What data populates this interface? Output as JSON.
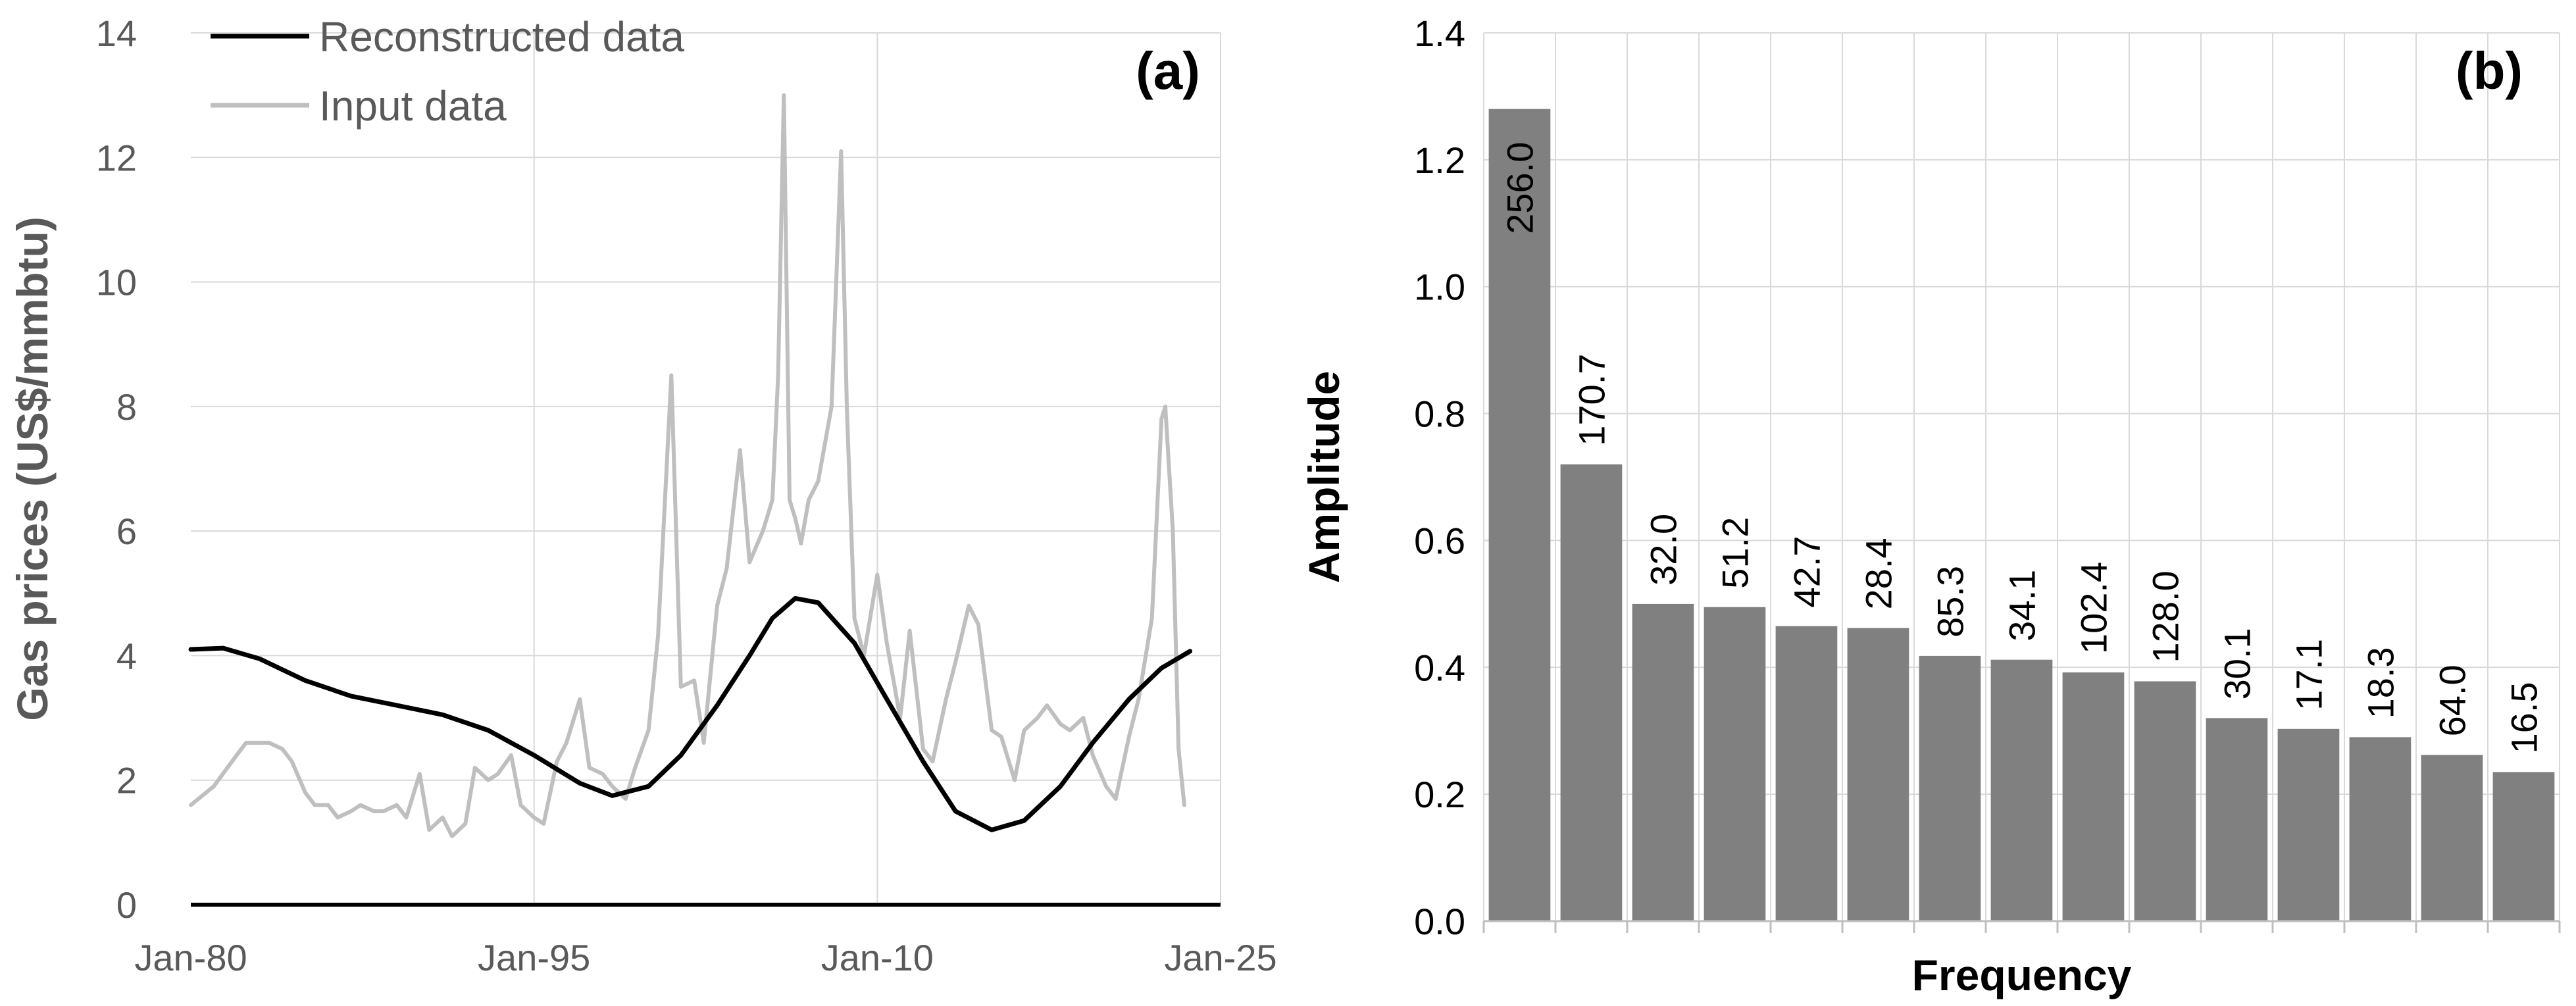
{
  "colors": {
    "reconstructed": "#000000",
    "input": "#bfbfbf",
    "bar": "#808080",
    "grid": "#d9d9d9",
    "tick_text_a": "#595959",
    "tick_text_b": "#000000"
  },
  "chart_data": [
    {
      "type": "line",
      "panel_label": "(a)",
      "ylabel": "Gas prices (US$/mmbtu)",
      "xlabel": "",
      "ylim": [
        0,
        14
      ],
      "yticks": [
        0,
        2,
        4,
        6,
        8,
        10,
        12,
        14
      ],
      "xlim": [
        "1980-01",
        "2025-01"
      ],
      "xticks": [
        "Jan-80",
        "Jan-95",
        "Jan-10",
        "Jan-25"
      ],
      "grid": true,
      "legend_position": "top-left",
      "series": [
        {
          "name": "Reconstructed data",
          "color": "#000000",
          "x": [
            "1980-01",
            "1981-06",
            "1983-01",
            "1985-01",
            "1987-01",
            "1989-01",
            "1991-01",
            "1993-01",
            "1995-01",
            "1997-01",
            "1998-06",
            "2000-01",
            "2001-06",
            "2003-01",
            "2004-06",
            "2005-06",
            "2006-06",
            "2007-06",
            "2009-01",
            "2010-06",
            "2012-01",
            "2013-06",
            "2015-01",
            "2016-06",
            "2018-01",
            "2019-06",
            "2021-01",
            "2022-06",
            "2023-09"
          ],
          "values": [
            4.1,
            4.12,
            3.95,
            3.6,
            3.35,
            3.2,
            3.05,
            2.8,
            2.4,
            1.95,
            1.75,
            1.9,
            2.4,
            3.2,
            4.0,
            4.6,
            4.92,
            4.85,
            4.2,
            3.3,
            2.3,
            1.5,
            1.2,
            1.35,
            1.9,
            2.6,
            3.3,
            3.8,
            4.07
          ]
        },
        {
          "name": "Input data",
          "color": "#bfbfbf",
          "x": [
            "1980-01",
            "1981-01",
            "1982-01",
            "1982-06",
            "1983-01",
            "1983-06",
            "1984-01",
            "1984-06",
            "1985-01",
            "1985-06",
            "1986-01",
            "1986-06",
            "1987-01",
            "1987-06",
            "1988-01",
            "1988-06",
            "1989-01",
            "1989-06",
            "1990-01",
            "1990-06",
            "1991-01",
            "1991-06",
            "1992-01",
            "1992-06",
            "1993-01",
            "1993-06",
            "1994-01",
            "1994-06",
            "1995-01",
            "1995-06",
            "1996-01",
            "1996-06",
            "1997-01",
            "1997-06",
            "1998-01",
            "1998-06",
            "1999-01",
            "1999-06",
            "2000-01",
            "2000-06",
            "2001-01",
            "2001-06",
            "2002-01",
            "2002-06",
            "2003-01",
            "2003-06",
            "2004-01",
            "2004-06",
            "2005-01",
            "2005-06",
            "2005-09",
            "2005-12",
            "2006-03",
            "2006-06",
            "2006-09",
            "2007-01",
            "2007-06",
            "2008-01",
            "2008-06",
            "2008-09",
            "2009-01",
            "2009-06",
            "2010-01",
            "2010-06",
            "2011-01",
            "2011-06",
            "2012-01",
            "2012-06",
            "2013-01",
            "2013-06",
            "2014-01",
            "2014-06",
            "2015-01",
            "2015-06",
            "2016-01",
            "2016-06",
            "2017-01",
            "2017-06",
            "2018-01",
            "2018-06",
            "2019-01",
            "2019-06",
            "2020-01",
            "2020-06",
            "2021-01",
            "2021-06",
            "2022-01",
            "2022-06",
            "2022-08",
            "2022-12",
            "2023-03",
            "2023-06"
          ],
          "values": [
            1.6,
            1.9,
            2.4,
            2.6,
            2.6,
            2.6,
            2.5,
            2.3,
            1.8,
            1.6,
            1.6,
            1.4,
            1.5,
            1.6,
            1.5,
            1.5,
            1.6,
            1.4,
            2.1,
            1.2,
            1.4,
            1.1,
            1.3,
            2.2,
            2.0,
            2.1,
            2.4,
            1.6,
            1.4,
            1.3,
            2.3,
            2.6,
            3.3,
            2.2,
            2.1,
            1.9,
            1.7,
            2.2,
            2.8,
            4.3,
            8.5,
            3.5,
            3.6,
            2.6,
            4.8,
            5.4,
            7.3,
            5.5,
            6.0,
            6.5,
            8.5,
            13.0,
            6.5,
            6.2,
            5.8,
            6.5,
            6.8,
            8.0,
            12.1,
            8.0,
            4.6,
            4.0,
            5.3,
            4.2,
            3.0,
            4.4,
            2.5,
            2.3,
            3.3,
            3.9,
            4.8,
            4.5,
            2.8,
            2.7,
            2.0,
            2.8,
            3.0,
            3.2,
            2.9,
            2.8,
            3.0,
            2.4,
            1.9,
            1.7,
            2.7,
            3.3,
            4.6,
            7.8,
            8.0,
            6.0,
            2.5,
            1.6
          ]
        }
      ]
    },
    {
      "type": "bar",
      "panel_label": "(b)",
      "xlabel": "Frequency",
      "ylabel": "Amplitude",
      "ylim": [
        0.0,
        1.4
      ],
      "yticks": [
        "0.0",
        "0.2",
        "0.4",
        "0.6",
        "0.8",
        "1.0",
        "1.2",
        "1.4"
      ],
      "grid": true,
      "categories": [
        "256.0",
        "170.7",
        "32.0",
        "51.2",
        "42.7",
        "28.4",
        "85.3",
        "34.1",
        "102.4",
        "128.0",
        "30.1",
        "17.1",
        "18.3",
        "64.0",
        "16.5"
      ],
      "values": [
        1.28,
        0.72,
        0.5,
        0.495,
        0.465,
        0.462,
        0.418,
        0.412,
        0.392,
        0.378,
        0.32,
        0.303,
        0.29,
        0.262,
        0.235
      ],
      "data_labels": [
        "256.0",
        "170.7",
        "32.0",
        "51.2",
        "42.7",
        "28.4",
        "85.3",
        "34.1",
        "102.4",
        "128.0",
        "30.1",
        "17.1",
        "18.3",
        "64.0",
        "16.5"
      ]
    }
  ]
}
